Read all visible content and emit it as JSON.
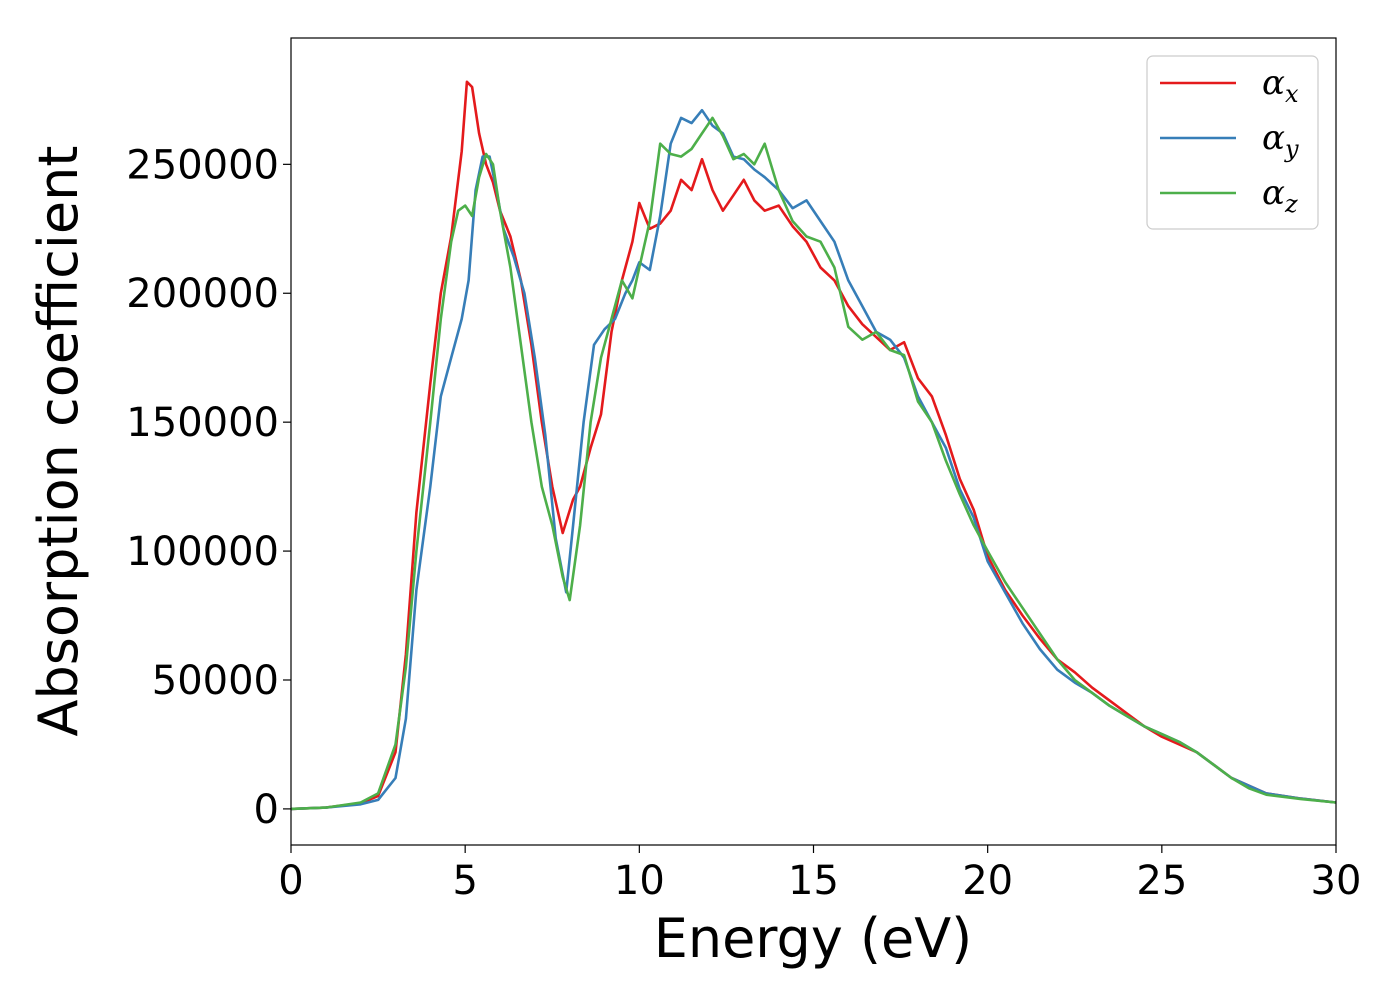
{
  "chart_data": {
    "type": "line",
    "title": "",
    "xlabel": "Energy (eV)",
    "ylabel": "Absorption coefficient",
    "xlim": [
      0,
      30
    ],
    "ylim": [
      -14000,
      299000
    ],
    "xticks": [
      0,
      5,
      10,
      15,
      20,
      25,
      30
    ],
    "yticks": [
      0,
      50000,
      100000,
      150000,
      200000,
      250000
    ],
    "grid": false,
    "legend_position": "upper-right",
    "series": [
      {
        "name": "α_x",
        "label_main": "α",
        "label_sub": "x",
        "color": "#e41a1c",
        "x": [
          0,
          1,
          2,
          2.5,
          3,
          3.3,
          3.6,
          4,
          4.3,
          4.6,
          4.9,
          5.05,
          5.2,
          5.4,
          5.6,
          5.8,
          6,
          6.3,
          6.6,
          6.9,
          7.2,
          7.5,
          7.8,
          8.1,
          8.3,
          8.6,
          8.9,
          9.2,
          9.5,
          9.8,
          10,
          10.3,
          10.6,
          10.9,
          11.2,
          11.5,
          11.8,
          12.1,
          12.4,
          12.7,
          13,
          13.3,
          13.6,
          14,
          14.4,
          14.8,
          15.2,
          15.6,
          16,
          16.4,
          16.8,
          17.2,
          17.6,
          18,
          18.4,
          18.8,
          19.2,
          19.6,
          20,
          20.5,
          21,
          21.5,
          22,
          22.5,
          23,
          23.5,
          24,
          24.5,
          25,
          25.5,
          26,
          26.5,
          27,
          27.5,
          28,
          29,
          30
        ],
        "y": [
          0,
          500,
          2200,
          5000,
          22000,
          60000,
          115000,
          165000,
          200000,
          222000,
          255000,
          282000,
          280000,
          262000,
          250000,
          243000,
          232000,
          222000,
          205000,
          180000,
          150000,
          125000,
          107000,
          120000,
          125000,
          140000,
          153000,
          185000,
          205000,
          220000,
          235000,
          225000,
          227000,
          232000,
          244000,
          240000,
          252000,
          240000,
          232000,
          238000,
          244000,
          236000,
          232000,
          234000,
          226000,
          220000,
          210000,
          205000,
          195000,
          188000,
          183000,
          178000,
          181000,
          167000,
          160000,
          145000,
          128000,
          116000,
          98000,
          85000,
          75000,
          66000,
          58000,
          53000,
          47000,
          42000,
          37000,
          32000,
          28000,
          25000,
          22000,
          17000,
          12000,
          9000,
          6000,
          4000,
          2500
        ]
      },
      {
        "name": "α_y",
        "label_main": "α",
        "label_sub": "y",
        "color": "#377eb8",
        "x": [
          0,
          1,
          2,
          2.5,
          3,
          3.3,
          3.6,
          4,
          4.3,
          4.6,
          4.9,
          5.1,
          5.3,
          5.5,
          5.7,
          5.9,
          6.1,
          6.4,
          6.7,
          7,
          7.3,
          7.6,
          7.9,
          8.1,
          8.4,
          8.7,
          9,
          9.3,
          9.6,
          9.8,
          10,
          10.3,
          10.6,
          10.9,
          11.2,
          11.5,
          11.8,
          12.1,
          12.4,
          12.7,
          13,
          13.3,
          13.6,
          14,
          14.4,
          14.8,
          15.2,
          15.6,
          16,
          16.4,
          16.8,
          17.2,
          17.6,
          18,
          18.4,
          18.8,
          19.2,
          19.6,
          20,
          20.5,
          21,
          21.5,
          22,
          22.5,
          23,
          23.5,
          24,
          24.5,
          25,
          25.5,
          26,
          26.5,
          27,
          27.5,
          28,
          29,
          30
        ],
        "y": [
          0,
          500,
          1800,
          3500,
          12000,
          35000,
          85000,
          125000,
          160000,
          175000,
          190000,
          205000,
          240000,
          253000,
          253000,
          240000,
          225000,
          214000,
          200000,
          175000,
          145000,
          105000,
          84000,
          110000,
          150000,
          180000,
          186000,
          190000,
          200000,
          205000,
          212000,
          209000,
          230000,
          258000,
          268000,
          266000,
          271000,
          265000,
          262000,
          253000,
          252000,
          248000,
          245000,
          240000,
          233000,
          236000,
          228000,
          220000,
          205000,
          195000,
          185000,
          182000,
          175000,
          160000,
          150000,
          140000,
          124000,
          113000,
          96000,
          84000,
          72000,
          62000,
          54000,
          49000,
          45000,
          40000,
          36000,
          32000,
          29000,
          26000,
          22000,
          17000,
          12000,
          9000,
          6000,
          4000,
          2500
        ]
      },
      {
        "name": "α_z",
        "label_main": "α",
        "label_sub": "z",
        "color": "#4daf4a",
        "x": [
          0,
          1,
          2,
          2.5,
          3,
          3.3,
          3.6,
          4,
          4.3,
          4.6,
          4.8,
          5,
          5.2,
          5.4,
          5.6,
          5.8,
          6,
          6.3,
          6.6,
          6.9,
          7.2,
          7.5,
          7.8,
          8,
          8.3,
          8.6,
          8.9,
          9.2,
          9.5,
          9.8,
          10,
          10.3,
          10.6,
          10.9,
          11.2,
          11.5,
          11.8,
          12.1,
          12.4,
          12.7,
          13,
          13.3,
          13.6,
          14,
          14.4,
          14.8,
          15.2,
          15.6,
          16,
          16.4,
          16.8,
          17.2,
          17.6,
          18,
          18.4,
          18.8,
          19.2,
          19.6,
          20,
          20.5,
          21,
          21.5,
          22,
          22.5,
          23,
          23.5,
          24,
          24.5,
          25,
          25.5,
          26,
          26.5,
          27,
          27.5,
          28,
          29,
          30
        ],
        "y": [
          0,
          500,
          2500,
          6000,
          25000,
          55000,
          100000,
          150000,
          190000,
          220000,
          232000,
          234000,
          230000,
          245000,
          254000,
          250000,
          232000,
          210000,
          180000,
          150000,
          125000,
          110000,
          90000,
          81000,
          110000,
          150000,
          175000,
          190000,
          205000,
          198000,
          210000,
          228000,
          258000,
          254000,
          253000,
          256000,
          262000,
          268000,
          261000,
          252000,
          254000,
          250000,
          258000,
          240000,
          228000,
          222000,
          220000,
          210000,
          187000,
          182000,
          185000,
          178000,
          176000,
          158000,
          150000,
          135000,
          122000,
          110000,
          100000,
          88000,
          78000,
          68000,
          58000,
          50000,
          45000,
          40000,
          36000,
          32000,
          29000,
          26000,
          22000,
          17000,
          12000,
          8000,
          5500,
          3800,
          2500
        ]
      }
    ]
  }
}
